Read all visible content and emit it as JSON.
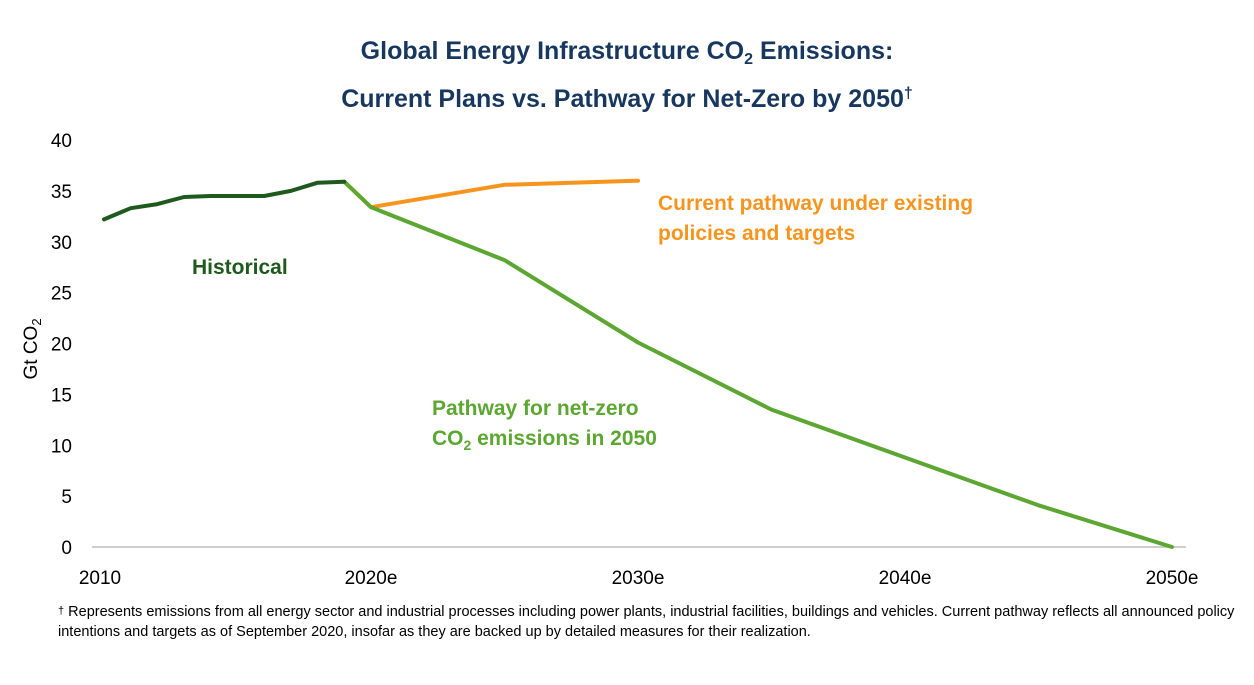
{
  "title": {
    "line1_a": "Global Energy Infrastructure CO",
    "line1_sub": "2",
    "line1_b": " Emissions:",
    "line2": "Current Plans vs. Pathway for Net-Zero by 2050",
    "line2_mark": "†"
  },
  "colors": {
    "title": "#17375e",
    "historical": "#1e5a1e",
    "current": "#f7941d",
    "netzero": "#5ca632",
    "axis": "#bfbfbf",
    "text": "#000000"
  },
  "chart_data": {
    "type": "line",
    "ylabel": "Gt CO",
    "ylabel_sub": "2",
    "ylim": [
      0,
      40
    ],
    "yticks": [
      0,
      5,
      10,
      15,
      20,
      25,
      30,
      35,
      40
    ],
    "xlim": [
      2010,
      2050
    ],
    "xticks": [
      {
        "value": 2010,
        "label": "2010"
      },
      {
        "value": 2020,
        "label": "2020e"
      },
      {
        "value": 2030,
        "label": "2030e"
      },
      {
        "value": 2040,
        "label": "2040e"
      },
      {
        "value": 2050,
        "label": "2050e"
      }
    ],
    "grid": false,
    "series": [
      {
        "key": "historical",
        "name": "Historical",
        "x": [
          2010,
          2011,
          2012,
          2013,
          2014,
          2015,
          2016,
          2017,
          2018,
          2019
        ],
        "y": [
          32.2,
          33.3,
          33.7,
          34.4,
          34.5,
          34.5,
          34.5,
          35.0,
          35.8,
          35.9
        ]
      },
      {
        "key": "current",
        "name": "Current pathway under existing policies and targets",
        "x": [
          2019,
          2020,
          2025,
          2030
        ],
        "y": [
          35.9,
          33.4,
          35.6,
          36.0
        ]
      },
      {
        "key": "netzero",
        "name": "Pathway for net-zero CO2 emissions in 2050",
        "x": [
          2019,
          2020,
          2025,
          2030,
          2035,
          2040,
          2045,
          2050
        ],
        "y": [
          35.9,
          33.4,
          28.2,
          20.1,
          13.5,
          8.8,
          4.1,
          0
        ]
      }
    ],
    "annotations": {
      "historical": "Historical",
      "current_line1": "Current pathway under existing",
      "current_line2": "policies and targets",
      "netzero_line1": "Pathway for net-zero",
      "netzero_line2_a": "CO",
      "netzero_line2_sub": "2",
      "netzero_line2_b": " emissions in 2050"
    }
  },
  "footnote": {
    "mark": "†",
    "text": " Represents emissions from all energy sector and industrial processes including power plants, industrial facilities, buildings and vehicles. Current pathway reflects all announced policy intentions and targets as of September 2020, insofar as they are backed up by detailed measures for their realization."
  }
}
